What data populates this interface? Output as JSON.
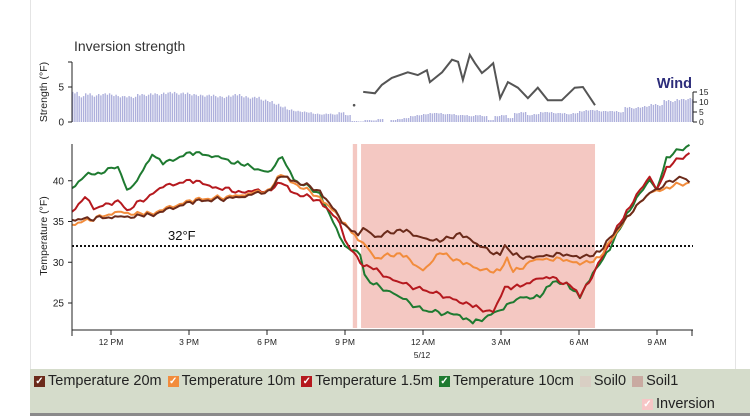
{
  "chart_data": [
    {
      "type": "bar+line",
      "title": "Inversion strength",
      "ylabel": "Strength (°F)",
      "ylim": [
        0,
        8.6
      ],
      "y_ticks": [
        "0",
        "5"
      ],
      "y2label": "Wind",
      "y2lim": [
        0,
        15
      ],
      "y2_ticks": [
        "0",
        "5",
        "10",
        "15"
      ],
      "bar_color": "#aeb0dc",
      "line_color": "#555555",
      "strength_bars": {
        "start": "10:30",
        "interval_minutes": 15,
        "values": [
          4.3,
          3.7,
          4.1,
          3.8,
          4,
          4.1,
          3.9,
          3.7,
          3.7,
          3.6,
          4,
          3.9,
          4.1,
          4,
          4.2,
          4.3,
          4.1,
          4.2,
          4,
          3.9,
          3.8,
          3.9,
          3.7,
          3.6,
          3.8,
          4,
          3.7,
          3.5,
          3.6,
          3.2,
          3,
          2.6,
          2.2,
          1.8,
          1.6,
          1.5,
          1.4,
          1.2,
          1.1,
          1.2,
          1.1,
          1.4,
          1
        ]
      },
      "wind_bars": {
        "start": "21:15",
        "interval_minutes": 15,
        "values": [
          0.5,
          0.3,
          1,
          0.8,
          1.5,
          0,
          1,
          1.5,
          2,
          3,
          3.5,
          4,
          4.5,
          4.5,
          4,
          4,
          3.5,
          3.5,
          3,
          3.5,
          3,
          1,
          3,
          3.5,
          2,
          4.5,
          5,
          3.5,
          4,
          5,
          5,
          4.5,
          4.5,
          4,
          4.5,
          5.5,
          6,
          6,
          5.5,
          5.5,
          5.5,
          5,
          7.5,
          7,
          7.5,
          8,
          9,
          8.5,
          11,
          10.5,
          11.5,
          11.5,
          12,
          12,
          12.5
        ]
      },
      "strength_line": [
        [
          "21:21",
          2.4
        ],
        [
          "21:42",
          4.3
        ],
        [
          "22:09",
          4.1
        ],
        [
          "22:25",
          5.3
        ],
        [
          "22:48",
          6.3
        ],
        [
          "23:25",
          7.1
        ],
        [
          "23:48",
          6.7
        ],
        [
          "00:09",
          7.4
        ],
        [
          "00:16",
          5.7
        ],
        [
          "00:44",
          7.1
        ],
        [
          "01:07",
          8.9
        ],
        [
          "01:21",
          8.6
        ],
        [
          "01:32",
          6.0
        ],
        [
          "01:48",
          9.6
        ],
        [
          "02:00",
          8.4
        ],
        [
          "02:16",
          7.0
        ],
        [
          "02:30",
          7.7
        ],
        [
          "02:42",
          8.4
        ],
        [
          "02:58",
          3.4
        ],
        [
          "03:16",
          5.7
        ],
        [
          "03:39",
          4.9
        ],
        [
          "04:02",
          3.4
        ],
        [
          "04:25",
          4.9
        ],
        [
          "04:48",
          3.1
        ],
        [
          "05:20",
          3.1
        ],
        [
          "05:50",
          4.9
        ],
        [
          "06:09",
          5.0
        ],
        [
          "06:37",
          2.4
        ]
      ]
    },
    {
      "type": "line",
      "ylabel": "Temperature (°F)",
      "ylim": [
        22,
        44.5
      ],
      "y_ticks": [
        "25",
        "30",
        "35",
        "40"
      ],
      "x_range": [
        "10:30",
        "10:30"
      ],
      "x_ticks": [
        [
          "12:00",
          "12 PM"
        ],
        [
          "15:00",
          "3 PM"
        ],
        [
          "18:00",
          "6 PM"
        ],
        [
          "21:00",
          "9 PM"
        ],
        [
          "00:00",
          "12 AM"
        ],
        [
          "03:00",
          "3 AM"
        ],
        [
          "06:00",
          "6 AM"
        ],
        [
          "09:00",
          "9 AM"
        ]
      ],
      "x_sublabel": "5/12",
      "reference_line": {
        "value": 32,
        "label": "32°F"
      },
      "inversion_periods": [
        [
          "21:18",
          "21:28"
        ],
        [
          "21:37",
          "06:37"
        ]
      ],
      "inversion_color": "#f4c8c2",
      "series": [
        {
          "name": "Temperature 10cm",
          "color": "#1e7a30",
          "points": [
            [
              "10:30",
              39.1
            ],
            [
              "11:00",
              40.6
            ],
            [
              "11:30",
              41
            ],
            [
              "12:16",
              41.7
            ],
            [
              "12:37",
              38.9
            ],
            [
              "13:00",
              40
            ],
            [
              "13:35",
              43.2
            ],
            [
              "14:00",
              42
            ],
            [
              "15:02",
              43.5
            ],
            [
              "16:00",
              43
            ],
            [
              "17:00",
              42
            ],
            [
              "18:02",
              41.1
            ],
            [
              "18:35",
              42.9
            ],
            [
              "19:02",
              40.1
            ],
            [
              "20:02",
              38.5
            ],
            [
              "20:48",
              33.1
            ],
            [
              "21:00",
              32.0
            ],
            [
              "21:35",
              30.9
            ],
            [
              "21:45",
              28.5
            ],
            [
              "21:58",
              27.5
            ],
            [
              "22:51",
              26.2
            ],
            [
              "00:00",
              24.1
            ],
            [
              "01:25",
              23.5
            ],
            [
              "01:55",
              22.5
            ],
            [
              "02:58",
              24.1
            ],
            [
              "03:44",
              25.7
            ],
            [
              "04:30",
              25.7
            ],
            [
              "05:00",
              27.6
            ],
            [
              "05:32",
              27.5
            ],
            [
              "06:02",
              25.6
            ],
            [
              "06:32",
              28.7
            ],
            [
              "07:11",
              31.5
            ],
            [
              "07:50",
              36
            ],
            [
              "08:43",
              40.1
            ],
            [
              "08:59",
              38.9
            ],
            [
              "09:22",
              42.9
            ],
            [
              "10:15",
              44.4
            ]
          ]
        },
        {
          "name": "Temperature 1.5m",
          "color": "#b5191e",
          "points": [
            [
              "10:30",
              36.2
            ],
            [
              "11:00",
              38.0
            ],
            [
              "11:20",
              36.5
            ],
            [
              "12:16",
              37.6
            ],
            [
              "12:37",
              36.4
            ],
            [
              "14:00",
              39.2
            ],
            [
              "15:02",
              40.1
            ],
            [
              "16:02",
              39.2
            ],
            [
              "17:02",
              38.6
            ],
            [
              "18:02",
              38.9
            ],
            [
              "18:32",
              39.7
            ],
            [
              "19:02",
              38.5
            ],
            [
              "20:02",
              37.6
            ],
            [
              "20:48",
              34.8
            ],
            [
              "21:00",
              32.7
            ],
            [
              "21:35",
              29.9
            ],
            [
              "21:58",
              29.4
            ],
            [
              "22:51",
              27.8
            ],
            [
              "00:00",
              26.6
            ],
            [
              "01:02",
              25.7
            ],
            [
              "01:55",
              24.5
            ],
            [
              "02:42",
              23.9
            ],
            [
              "03:09",
              27
            ],
            [
              "03:44",
              27
            ],
            [
              "04:14",
              27.8
            ],
            [
              "05:00",
              28.2
            ],
            [
              "05:46",
              26.8
            ],
            [
              "06:02",
              25.7
            ],
            [
              "06:37",
              29
            ],
            [
              "07:50",
              36.4
            ],
            [
              "08:43",
              40.5
            ],
            [
              "08:59",
              38.9
            ],
            [
              "09:22",
              41.7
            ],
            [
              "10:15",
              43.4
            ]
          ]
        },
        {
          "name": "Temperature 10m",
          "color": "#f28c3c",
          "points": [
            [
              "10:30",
              34.6
            ],
            [
              "12:16",
              36.2
            ],
            [
              "13:16",
              35.8
            ],
            [
              "14:00",
              36.4
            ],
            [
              "15:02",
              37.6
            ],
            [
              "17:02",
              38.2
            ],
            [
              "18:02",
              38.9
            ],
            [
              "18:32",
              40.7
            ],
            [
              "19:02",
              39.7
            ],
            [
              "20:02",
              38
            ],
            [
              "21:00",
              34.8
            ],
            [
              "21:30",
              32.7
            ],
            [
              "21:42",
              32.4
            ],
            [
              "22:09",
              30.5
            ],
            [
              "23:07",
              31.1
            ],
            [
              "00:00",
              29
            ],
            [
              "00:39",
              31.1
            ],
            [
              "01:25",
              30.2
            ],
            [
              "02:12",
              29
            ],
            [
              "02:58",
              29
            ],
            [
              "03:14",
              30.6
            ],
            [
              "03:28",
              28.8
            ],
            [
              "04:14",
              30.2
            ],
            [
              "05:16",
              30.5
            ],
            [
              "06:02",
              29.7
            ],
            [
              "06:48",
              30.6
            ],
            [
              "07:50",
              35.6
            ],
            [
              "08:43",
              38.5
            ],
            [
              "09:22",
              39.2
            ],
            [
              "10:15",
              39.8
            ]
          ]
        },
        {
          "name": "Temperature 20m",
          "color": "#6b2a1a",
          "points": [
            [
              "10:30",
              35.2
            ],
            [
              "12:16",
              35.6
            ],
            [
              "13:16",
              35.6
            ],
            [
              "14:00",
              36.2
            ],
            [
              "15:02",
              37.4
            ],
            [
              "17:02",
              38.0
            ],
            [
              "18:02",
              38.8
            ],
            [
              "18:32",
              40.5
            ],
            [
              "19:02",
              40
            ],
            [
              "20:02",
              38.8
            ],
            [
              "21:00",
              34.6
            ],
            [
              "21:30",
              33.3
            ],
            [
              "21:42",
              34.2
            ],
            [
              "22:09",
              33.1
            ],
            [
              "23:07",
              34
            ],
            [
              "00:00",
              33
            ],
            [
              "00:39",
              32.5
            ],
            [
              "01:25",
              33.6
            ],
            [
              "02:12",
              31.9
            ],
            [
              "02:58",
              30.9
            ],
            [
              "03:09",
              32.1
            ],
            [
              "03:28",
              30.9
            ],
            [
              "04:14",
              30.5
            ],
            [
              "05:16",
              31.1
            ],
            [
              "06:02",
              30.5
            ],
            [
              "06:48",
              31.3
            ],
            [
              "07:50",
              35.6
            ],
            [
              "08:43",
              38.5
            ],
            [
              "09:52",
              40.5
            ],
            [
              "10:15",
              39.8
            ]
          ]
        }
      ]
    }
  ],
  "legend": {
    "items": [
      {
        "label": "Temperature 20m",
        "color": "#6b2a1a",
        "checked": true
      },
      {
        "label": "Temperature 10m",
        "color": "#f28c3c",
        "checked": true
      },
      {
        "label": "Temperature 1.5m",
        "color": "#b5191e",
        "checked": true
      },
      {
        "label": "Temperature 10cm",
        "color": "#1e7a30",
        "checked": true
      },
      {
        "label": "Soil0",
        "color": "#d9cfc4",
        "checked": false
      },
      {
        "label": "Soil1",
        "color": "#c9aaa1",
        "checked": false
      },
      {
        "label": "Inversion",
        "color": "#f7c6c6",
        "checked": true
      }
    ],
    "check_glyph": "✓"
  }
}
